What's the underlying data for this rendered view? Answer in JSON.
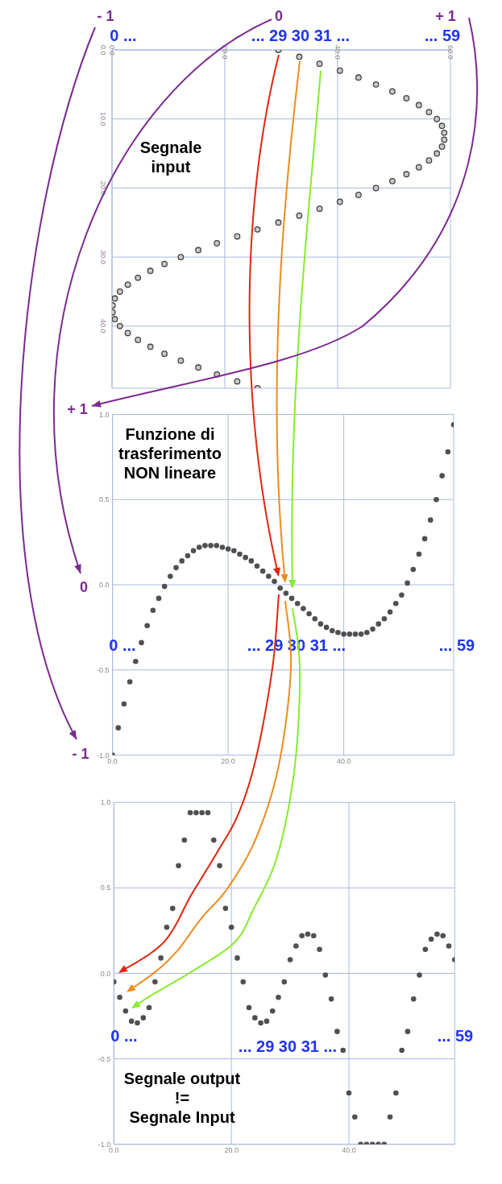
{
  "chart_data": [
    {
      "type": "scatter",
      "title": "Segnale\ninput",
      "x": [
        29.5,
        33.2,
        36.8,
        40.4,
        43.7,
        46.8,
        49.7,
        52.2,
        54.4,
        56.2,
        57.6,
        58.5,
        58.9,
        58.9,
        58.5,
        57.6,
        56.2,
        54.4,
        52.2,
        49.7,
        46.8,
        43.7,
        40.4,
        36.8,
        33.2,
        29.5,
        25.8,
        22.2,
        18.6,
        15.3,
        12.2,
        9.3,
        6.8,
        4.6,
        2.8,
        1.4,
        0.5,
        0.1,
        0.1,
        0.5,
        1.4,
        2.8,
        4.6,
        6.8,
        9.3,
        12.2,
        15.3,
        18.6,
        22.2,
        25.8
      ],
      "values": [
        0,
        1,
        2,
        3,
        4,
        5,
        6,
        7,
        8,
        9,
        10,
        11,
        12,
        13,
        14,
        15,
        16,
        17,
        18,
        19,
        20,
        21,
        22,
        23,
        24,
        25,
        26,
        27,
        28,
        29,
        30,
        31,
        32,
        33,
        34,
        35,
        36,
        37,
        38,
        39,
        40,
        41,
        42,
        43,
        44,
        45,
        46,
        47,
        48,
        49
      ],
      "color": "#444444",
      "marker": "circle",
      "xlim": [
        0,
        60
      ],
      "xticks": [
        {
          "value": 0,
          "label": "0.0"
        },
        {
          "value": 20,
          "label": "20.0"
        },
        {
          "value": 40,
          "label": "40.0"
        },
        {
          "value": 60,
          "label": "60.0"
        }
      ],
      "ylim": [
        49,
        0
      ],
      "yticks": [
        {
          "value": 0,
          "label": "0.0"
        },
        {
          "value": 10,
          "label": "10.0"
        },
        {
          "value": 20,
          "label": "20.0"
        },
        {
          "value": 30,
          "label": "30.0"
        },
        {
          "value": 40,
          "label": "40.0"
        }
      ],
      "grid": true,
      "annotations": [
        "- 1",
        "0",
        "+ 1",
        "0 ...",
        "... 29 30 31 ...",
        "... 59"
      ]
    },
    {
      "type": "scatter",
      "title": "Funzione di\ntrasferimento\nNON lineare",
      "x": [
        0,
        1,
        2,
        3,
        4,
        5,
        6,
        7,
        8,
        9,
        10,
        11,
        12,
        13,
        14,
        15,
        16,
        17,
        18,
        19,
        20,
        21,
        22,
        23,
        24,
        25,
        26,
        27,
        28,
        29,
        30,
        31,
        32,
        33,
        34,
        35,
        36,
        37,
        38,
        39,
        40,
        41,
        42,
        43,
        44,
        45,
        46,
        47,
        48,
        49,
        50,
        51,
        52,
        53,
        54,
        55,
        56,
        57,
        58,
        59
      ],
      "values": [
        -1,
        -0.84,
        -0.7,
        -0.57,
        -0.45,
        -0.34,
        -0.24,
        -0.15,
        -0.08,
        -0.01,
        0.05,
        0.1,
        0.14,
        0.17,
        0.2,
        0.22,
        0.23,
        0.23,
        0.23,
        0.22,
        0.21,
        0.2,
        0.18,
        0.16,
        0.14,
        0.11,
        0.08,
        0.05,
        0.02,
        -0.02,
        -0.05,
        -0.08,
        -0.11,
        -0.14,
        -0.17,
        -0.2,
        -0.23,
        -0.25,
        -0.27,
        -0.28,
        -0.29,
        -0.29,
        -0.29,
        -0.29,
        -0.28,
        -0.26,
        -0.23,
        -0.2,
        -0.16,
        -0.11,
        -0.06,
        0.01,
        0.09,
        0.18,
        0.27,
        0.38,
        0.5,
        0.64,
        0.78,
        0.94
      ],
      "color": "#505050",
      "marker": "circle",
      "xlim": [
        0,
        59
      ],
      "xticks": [
        {
          "value": 0,
          "label": "0.0"
        },
        {
          "value": 20,
          "label": "20.0"
        },
        {
          "value": 40,
          "label": "40.0"
        }
      ],
      "ylim": [
        -1,
        1
      ],
      "yticks": [
        {
          "value": -1,
          "label": "-1.0"
        },
        {
          "value": -0.5,
          "label": "-0.5"
        },
        {
          "value": 0,
          "label": "0.0"
        },
        {
          "value": 0.5,
          "label": "0.5"
        },
        {
          "value": 1,
          "label": "1.0"
        }
      ],
      "grid": true,
      "annotations": [
        "+ 1",
        "0",
        "- 1",
        "0 ...",
        "... 29 30 31 ...",
        "... 59"
      ]
    },
    {
      "type": "scatter",
      "title": "Segnale output\n!=\nSegnale Input",
      "x": [
        0,
        1,
        2,
        3,
        4,
        5,
        6,
        7,
        8,
        9,
        10,
        11,
        12,
        13,
        14,
        15,
        16,
        17,
        18,
        19,
        20,
        21,
        22,
        23,
        24,
        25,
        26,
        27,
        28,
        29,
        30,
        31,
        32,
        33,
        34,
        35,
        36,
        37,
        38,
        39,
        40,
        41,
        42,
        43,
        44,
        45,
        46,
        47,
        48,
        49,
        50,
        51,
        52,
        53,
        54,
        55,
        56,
        57,
        58
      ],
      "values": [
        -0.05,
        -0.14,
        -0.22,
        -0.28,
        -0.29,
        -0.26,
        -0.2,
        -0.05,
        0.09,
        0.27,
        0.38,
        0.63,
        0.78,
        0.94,
        0.94,
        0.94,
        0.94,
        0.78,
        0.63,
        0.38,
        0.27,
        0.09,
        -0.05,
        -0.2,
        -0.26,
        -0.29,
        -0.28,
        -0.22,
        -0.14,
        -0.05,
        0.08,
        0.16,
        0.22,
        0.23,
        0.22,
        0.14,
        -0.01,
        -0.15,
        -0.34,
        -0.45,
        -0.7,
        -0.84,
        -1,
        -1,
        -1,
        -1,
        -1,
        -0.84,
        -0.7,
        -0.45,
        -0.34,
        -0.15,
        -0.01,
        0.14,
        0.2,
        0.23,
        0.22,
        0.16,
        0.08
      ],
      "color": "#505050",
      "marker": "circle",
      "xlim": [
        0,
        58
      ],
      "xticks": [
        {
          "value": 0,
          "label": "0.0"
        },
        {
          "value": 20,
          "label": "20.0"
        },
        {
          "value": 40,
          "label": "40.0"
        }
      ],
      "ylim": [
        -1,
        1
      ],
      "yticks": [
        {
          "value": -1,
          "label": "-1.0"
        },
        {
          "value": -0.5,
          "label": "-0.5"
        },
        {
          "value": 0,
          "label": "0.0"
        },
        {
          "value": 0.5,
          "label": "0.5"
        },
        {
          "value": 1,
          "label": "1.0"
        }
      ],
      "grid": true,
      "annotations": [
        "0 ...",
        "... 29 30 31 ...",
        "... 59"
      ]
    }
  ]
}
